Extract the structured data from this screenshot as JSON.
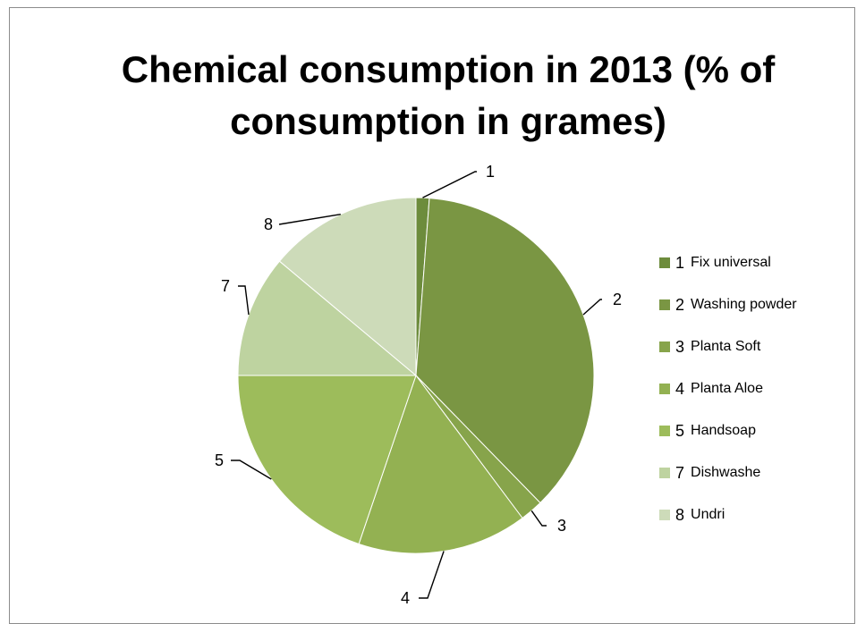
{
  "chart_data": {
    "type": "pie",
    "title": "Chemical consumption in 2013 (%  of consumption in grames)",
    "slices": [
      {
        "id": "1",
        "name": "Fix universal",
        "value": 1.2
      },
      {
        "id": "2",
        "name": "Washing powder",
        "value": 36.5
      },
      {
        "id": "3",
        "name": "Planta Soft",
        "value": 2.1
      },
      {
        "id": "4",
        "name": "Planta Aloe",
        "value": 15.4
      },
      {
        "id": "5",
        "name": "Handsoap",
        "value": 19.8
      },
      {
        "id": "7",
        "name": "Dishwashe",
        "value": 11.1
      },
      {
        "id": "8",
        "name": "Undri",
        "value": 13.9
      }
    ],
    "legend_position": "right",
    "colors": [
      "#6d8c3c",
      "#7a9643",
      "#87a44b",
      "#93b152",
      "#9dbc5b",
      "#bed3a0",
      "#cddbb9"
    ],
    "start_angle_degrees": 0,
    "direction": "clockwise"
  }
}
